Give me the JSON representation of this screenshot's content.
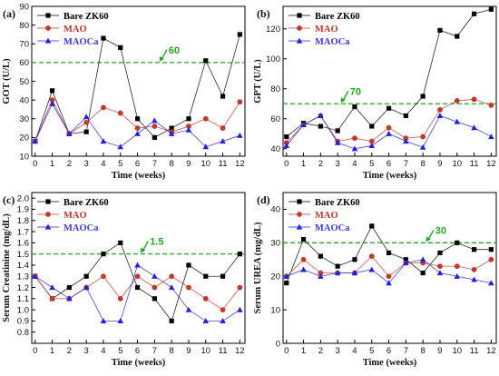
{
  "colors": {
    "bare": "#000000",
    "mao": "#c0392b",
    "maoca": "#2222dd",
    "threshold": "#22a822",
    "legend_bare": "#000000",
    "legend_mao": "#c0392b",
    "legend_maoca": "#3b3bd9"
  },
  "chart_data": [
    {
      "type": "line",
      "panel": "(a)",
      "xlabel": "Time (weeks)",
      "ylabel": "GOT (U/L)",
      "x": [
        0,
        1,
        2,
        3,
        4,
        5,
        6,
        7,
        8,
        9,
        10,
        11,
        12
      ],
      "xlim": [
        -0.2,
        12.3
      ],
      "ylim": [
        10,
        90
      ],
      "yticks": [
        10,
        20,
        30,
        40,
        50,
        60,
        70,
        80,
        90
      ],
      "threshold": 60,
      "threshold_label": "60",
      "annot_x": 7.4,
      "legend_position": "top-left",
      "series": [
        {
          "name": "Bare ZK60",
          "marker": "square",
          "values": [
            18,
            45,
            22,
            23,
            73,
            68,
            30,
            20,
            25,
            30,
            61,
            42,
            75
          ]
        },
        {
          "name": "MAO",
          "marker": "circle",
          "values": [
            18,
            40,
            22,
            28,
            36,
            33,
            25,
            26,
            23,
            26,
            30,
            25,
            39
          ]
        },
        {
          "name": "MAOCa",
          "marker": "triangle",
          "values": [
            18,
            38,
            22,
            31,
            18,
            15,
            22,
            29,
            22,
            24,
            15,
            18,
            21
          ]
        }
      ]
    },
    {
      "type": "line",
      "panel": "(b)",
      "xlabel": "Time (weeks)",
      "ylabel": "GPT (U/L)",
      "x": [
        0,
        1,
        2,
        3,
        4,
        5,
        6,
        7,
        8,
        9,
        10,
        11,
        12
      ],
      "xlim": [
        -0.2,
        12.3
      ],
      "ylim": [
        35,
        135
      ],
      "yticks": [
        40,
        60,
        80,
        100,
        120
      ],
      "threshold": 70,
      "threshold_label": "70",
      "annot_x": 3.3,
      "legend_position": "top-left",
      "series": [
        {
          "name": "Bare ZK60",
          "marker": "square",
          "values": [
            48,
            57,
            55,
            52,
            68,
            55,
            67,
            62,
            75,
            119,
            115,
            130,
            133
          ]
        },
        {
          "name": "MAO",
          "marker": "circle",
          "values": [
            44,
            56,
            62,
            45,
            47,
            45,
            54,
            47,
            48,
            66,
            72,
            73,
            69
          ]
        },
        {
          "name": "MAOCa",
          "marker": "triangle",
          "values": [
            42,
            56,
            62,
            44,
            40,
            42,
            50,
            45,
            41,
            62,
            58,
            54,
            48
          ]
        }
      ]
    },
    {
      "type": "line",
      "panel": "(c)",
      "xlabel": "Time (weeks)",
      "ylabel": "Serum Creatinine (mg/dL)",
      "x": [
        0,
        1,
        2,
        3,
        4,
        5,
        6,
        7,
        8,
        9,
        10,
        11,
        12
      ],
      "xlim": [
        -0.2,
        12.3
      ],
      "ylim": [
        0.7,
        2.05
      ],
      "yticks": [
        0.8,
        0.9,
        1.0,
        1.1,
        1.2,
        1.3,
        1.4,
        1.5,
        1.6,
        1.7,
        1.8,
        1.9,
        2.0
      ],
      "threshold": 1.5,
      "threshold_label": "1.5",
      "annot_x": 6.3,
      "legend_position": "top-left",
      "series": [
        {
          "name": "Bare ZK60",
          "marker": "square",
          "values": [
            1.3,
            1.1,
            1.2,
            1.3,
            1.5,
            1.6,
            1.2,
            1.1,
            0.9,
            1.4,
            1.3,
            1.3,
            1.5
          ]
        },
        {
          "name": "MAO",
          "marker": "circle",
          "values": [
            1.3,
            1.1,
            1.1,
            1.2,
            1.3,
            1.1,
            1.3,
            1.2,
            1.3,
            1.2,
            1.1,
            1.0,
            1.2
          ]
        },
        {
          "name": "MAOCa",
          "marker": "triangle",
          "values": [
            1.3,
            1.2,
            1.1,
            1.2,
            0.9,
            0.9,
            1.4,
            1.3,
            1.2,
            1.0,
            0.9,
            0.9,
            1.0
          ]
        }
      ]
    },
    {
      "type": "line",
      "panel": "(d)",
      "xlabel": "Time (weeks)",
      "ylabel": "Serum UREA (mg/dL)",
      "x": [
        0,
        1,
        2,
        3,
        4,
        5,
        6,
        7,
        8,
        9,
        10,
        11,
        12
      ],
      "xlim": [
        -0.2,
        12.3
      ],
      "ylim": [
        0,
        45
      ],
      "yticks": [
        0,
        10,
        20,
        30,
        40
      ],
      "threshold": 30,
      "threshold_label": "30",
      "annot_x": 8.3,
      "legend_position": "top-left",
      "series": [
        {
          "name": "Bare ZK60",
          "marker": "square",
          "values": [
            18,
            31,
            26,
            23,
            25,
            35,
            27,
            25,
            21,
            27,
            30,
            28,
            28
          ]
        },
        {
          "name": "MAO",
          "marker": "circle",
          "values": [
            20,
            25,
            21,
            21,
            21,
            26,
            20,
            24,
            24,
            23,
            23,
            22,
            25
          ]
        },
        {
          "name": "MAOCa",
          "marker": "triangle",
          "values": [
            20,
            22,
            20,
            21,
            21,
            22,
            18,
            24,
            25,
            21,
            20,
            19,
            18
          ]
        }
      ]
    }
  ]
}
